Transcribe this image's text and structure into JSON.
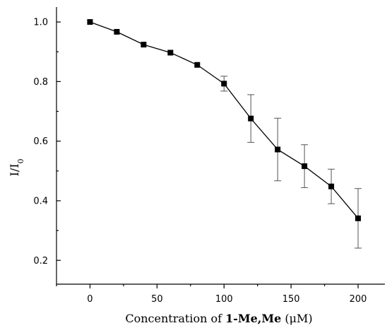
{
  "chart_data": {
    "type": "scatter",
    "title": "",
    "xlabel_parts": [
      "Concentration of ",
      "1-Me,Me",
      " (μM)"
    ],
    "ylabel_parts": [
      "I/I",
      "0"
    ],
    "xlim": [
      -25,
      220
    ],
    "ylim": [
      0.12,
      1.05
    ],
    "xticks": [
      0,
      50,
      100,
      150,
      200
    ],
    "xminor": [
      -25,
      25,
      75,
      125,
      175
    ],
    "yticks": [
      0.2,
      0.4,
      0.6,
      0.8,
      1.0
    ],
    "yminor": [
      0.3,
      0.5,
      0.7,
      0.9
    ],
    "series": [
      {
        "x": [
          0,
          20,
          40,
          60,
          80,
          100,
          120,
          140,
          160,
          180,
          200
        ],
        "y": [
          1.0,
          0.967,
          0.924,
          0.897,
          0.856,
          0.793,
          0.676,
          0.572,
          0.516,
          0.448,
          0.341
        ],
        "err": [
          0,
          0,
          0,
          0,
          0,
          0.025,
          0.08,
          0.105,
          0.072,
          0.058,
          0.1
        ]
      }
    ],
    "grid": false,
    "legend": "none"
  }
}
